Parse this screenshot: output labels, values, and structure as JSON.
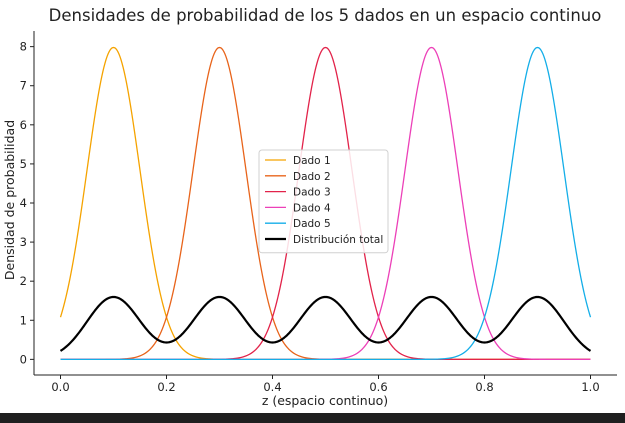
{
  "chart_data": {
    "type": "line",
    "title": "Densidades de probabilidad de los 5 dados en un espacio continuo",
    "xlabel": "z (espacio continuo)",
    "ylabel": "Densidad de probabilidad",
    "xlim": [
      -0.05,
      1.05
    ],
    "ylim": [
      -0.4,
      8.4
    ],
    "x_ticks": [
      0.0,
      0.2,
      0.4,
      0.6,
      0.8,
      1.0
    ],
    "x_tick_labels": [
      "0.0",
      "0.2",
      "0.4",
      "0.6",
      "0.8",
      "1.0"
    ],
    "y_ticks": [
      0,
      1,
      2,
      3,
      4,
      5,
      6,
      7,
      8
    ],
    "y_tick_labels": [
      "0",
      "1",
      "2",
      "3",
      "4",
      "5",
      "6",
      "7",
      "8"
    ],
    "grid": false,
    "legend_position": "center",
    "series": [
      {
        "name": "Dado 1",
        "color": "#f5a300",
        "linewidth": 1.3,
        "mean": 0.1,
        "sd": 0.05,
        "weight": 1.0
      },
      {
        "name": "Dado 2",
        "color": "#e8641b",
        "linewidth": 1.3,
        "mean": 0.3,
        "sd": 0.05,
        "weight": 1.0
      },
      {
        "name": "Dado 3",
        "color": "#e2234a",
        "linewidth": 1.3,
        "mean": 0.5,
        "sd": 0.05,
        "weight": 1.0
      },
      {
        "name": "Dado 4",
        "color": "#ec40b8",
        "linewidth": 1.3,
        "mean": 0.7,
        "sd": 0.05,
        "weight": 1.0
      },
      {
        "name": "Dado 5",
        "color": "#14aee8",
        "linewidth": 1.3,
        "mean": 0.9,
        "sd": 0.05,
        "weight": 1.0
      },
      {
        "name": "Distribución total",
        "color": "#000000",
        "linewidth": 2.2,
        "mixture": true,
        "weight": 0.2
      }
    ],
    "x_range": [
      0.0,
      1.0
    ]
  }
}
